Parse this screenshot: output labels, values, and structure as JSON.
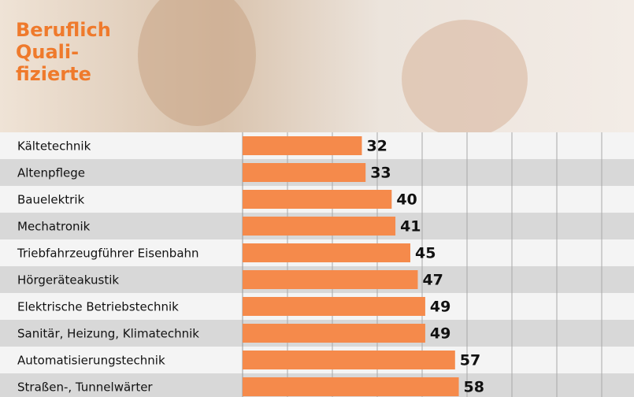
{
  "chart_data": {
    "type": "bar",
    "orientation": "horizontal",
    "title_lines": [
      "Beruflich",
      "Quali-",
      "fizierte"
    ],
    "categories": [
      "Kältetechnik",
      "Altenpflege",
      "Bauelektrik",
      "Mechatronik",
      "Triebfahrzeugführer Eisenbahn",
      "Hörgeräteakustik",
      "Elektrische Betriebstechnik",
      "Sanitär, Heizung, Klimatechnik",
      "Automatisierungstechnik",
      "Straßen-, Tunnelwärter"
    ],
    "values": [
      32,
      33,
      40,
      41,
      45,
      47,
      49,
      49,
      57,
      58
    ],
    "color": "#f58a4b",
    "xlim": [
      0,
      105
    ]
  }
}
